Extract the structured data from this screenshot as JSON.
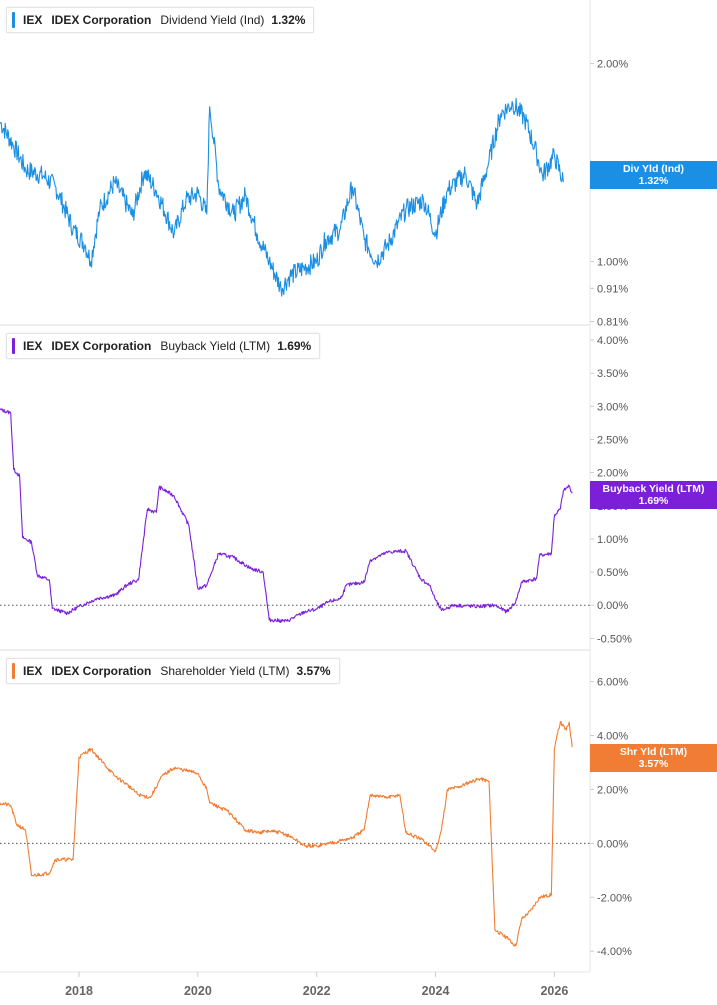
{
  "legends": [
    {
      "ticker": "IEX",
      "company": "IDEX Corporation",
      "metric": "Dividend Yield (Ind)",
      "value": "1.32%"
    },
    {
      "ticker": "IEX",
      "company": "IDEX Corporation",
      "metric": "Buyback Yield (LTM)",
      "value": "1.69%"
    },
    {
      "ticker": "IEX",
      "company": "IDEX Corporation",
      "metric": "Shareholder Yield (LTM)",
      "value": "3.57%"
    }
  ],
  "tags": [
    {
      "label": "Div Yld (Ind)",
      "value": "1.32%"
    },
    {
      "label": "Buyback Yield (LTM)",
      "value": "1.69%"
    },
    {
      "label": "Shr Yld (LTM)",
      "value": "3.57%"
    }
  ],
  "colors": {
    "dividend": "#1a8fe3",
    "buyback": "#7b1fd8",
    "shareholder": "#f07d33",
    "grid": "#dddddd",
    "axis_text": "#555555"
  },
  "chart_data": [
    {
      "type": "line",
      "log_scale": true,
      "series": [
        {
          "name": "Dividend Yield (Ind)",
          "values": [
            [
              2016.67,
              1.63
            ],
            [
              2016.9,
              1.5
            ],
            [
              2017.1,
              1.38
            ],
            [
              2017.4,
              1.35
            ],
            [
              2017.6,
              1.3
            ],
            [
              2017.9,
              1.12
            ],
            [
              2018.1,
              1.06
            ],
            [
              2018.2,
              1.0
            ],
            [
              2018.35,
              1.2
            ],
            [
              2018.6,
              1.32
            ],
            [
              2018.9,
              1.17
            ],
            [
              2019.1,
              1.37
            ],
            [
              2019.3,
              1.28
            ],
            [
              2019.6,
              1.1
            ],
            [
              2019.8,
              1.24
            ],
            [
              2020.0,
              1.27
            ],
            [
              2020.15,
              1.18
            ],
            [
              2020.2,
              1.72
            ],
            [
              2020.35,
              1.3
            ],
            [
              2020.6,
              1.18
            ],
            [
              2020.8,
              1.26
            ],
            [
              2021.0,
              1.1
            ],
            [
              2021.2,
              1.0
            ],
            [
              2021.4,
              0.91
            ],
            [
              2021.55,
              0.95
            ],
            [
              2021.8,
              0.98
            ],
            [
              2022.0,
              1.0
            ],
            [
              2022.15,
              1.08
            ],
            [
              2022.4,
              1.12
            ],
            [
              2022.6,
              1.3
            ],
            [
              2022.8,
              1.08
            ],
            [
              2023.0,
              1.0
            ],
            [
              2023.2,
              1.06
            ],
            [
              2023.5,
              1.2
            ],
            [
              2023.8,
              1.24
            ],
            [
              2024.0,
              1.1
            ],
            [
              2024.2,
              1.28
            ],
            [
              2024.5,
              1.36
            ],
            [
              2024.7,
              1.22
            ],
            [
              2024.9,
              1.42
            ],
            [
              2025.1,
              1.68
            ],
            [
              2025.3,
              1.74
            ],
            [
              2025.5,
              1.65
            ],
            [
              2025.7,
              1.46
            ],
            [
              2025.8,
              1.35
            ],
            [
              2026.0,
              1.45
            ],
            [
              2026.15,
              1.32
            ]
          ]
        }
      ],
      "ylim": [
        0.8,
        2.5
      ],
      "y_ticks": [
        "2.00%",
        "1.00%",
        "0.91%",
        "0.81%"
      ]
    },
    {
      "type": "line",
      "series": [
        {
          "name": "Buyback Yield (LTM)",
          "values": [
            [
              2016.67,
              2.95
            ],
            [
              2016.85,
              2.9
            ],
            [
              2016.9,
              2.05
            ],
            [
              2017.0,
              1.95
            ],
            [
              2017.05,
              1.02
            ],
            [
              2017.2,
              0.95
            ],
            [
              2017.3,
              0.45
            ],
            [
              2017.5,
              0.38
            ],
            [
              2017.55,
              -0.05
            ],
            [
              2017.8,
              -0.12
            ],
            [
              2018.0,
              -0.02
            ],
            [
              2018.1,
              0.02
            ],
            [
              2018.3,
              0.1
            ],
            [
              2018.6,
              0.15
            ],
            [
              2018.8,
              0.3
            ],
            [
              2018.9,
              0.35
            ],
            [
              2019.0,
              0.38
            ],
            [
              2019.15,
              1.45
            ],
            [
              2019.3,
              1.4
            ],
            [
              2019.35,
              1.78
            ],
            [
              2019.6,
              1.65
            ],
            [
              2019.85,
              1.2
            ],
            [
              2020.0,
              0.25
            ],
            [
              2020.15,
              0.3
            ],
            [
              2020.35,
              0.78
            ],
            [
              2020.6,
              0.72
            ],
            [
              2020.9,
              0.55
            ],
            [
              2021.1,
              0.5
            ],
            [
              2021.2,
              -0.22
            ],
            [
              2021.5,
              -0.24
            ],
            [
              2021.8,
              -0.1
            ],
            [
              2022.0,
              -0.06
            ],
            [
              2022.2,
              0.05
            ],
            [
              2022.4,
              0.1
            ],
            [
              2022.5,
              0.3
            ],
            [
              2022.8,
              0.35
            ],
            [
              2022.9,
              0.68
            ],
            [
              2023.2,
              0.8
            ],
            [
              2023.5,
              0.82
            ],
            [
              2023.75,
              0.4
            ],
            [
              2023.9,
              0.3
            ],
            [
              2024.0,
              0.08
            ],
            [
              2024.1,
              -0.08
            ],
            [
              2024.3,
              0.0
            ],
            [
              2024.7,
              -0.02
            ],
            [
              2025.0,
              0.0
            ],
            [
              2025.2,
              -0.1
            ],
            [
              2025.35,
              0.05
            ],
            [
              2025.45,
              0.35
            ],
            [
              2025.7,
              0.4
            ],
            [
              2025.75,
              0.75
            ],
            [
              2025.95,
              0.78
            ],
            [
              2026.0,
              1.35
            ],
            [
              2026.1,
              1.45
            ],
            [
              2026.15,
              1.72
            ],
            [
              2026.25,
              1.8
            ],
            [
              2026.3,
              1.69
            ]
          ]
        }
      ],
      "ylim": [
        -0.6,
        4.0
      ],
      "y_ticks": [
        "4.00%",
        "3.50%",
        "3.00%",
        "2.50%",
        "2.00%",
        "1.50%",
        "1.00%",
        "0.50%",
        "0.00%",
        "-0.50%"
      ]
    },
    {
      "type": "line",
      "series": [
        {
          "name": "Shareholder Yield (LTM)",
          "values": [
            [
              2016.67,
              1.5
            ],
            [
              2016.85,
              1.4
            ],
            [
              2016.95,
              0.7
            ],
            [
              2017.1,
              0.5
            ],
            [
              2017.2,
              -1.2
            ],
            [
              2017.5,
              -1.1
            ],
            [
              2017.6,
              -0.6
            ],
            [
              2017.9,
              -0.6
            ],
            [
              2018.0,
              3.2
            ],
            [
              2018.2,
              3.5
            ],
            [
              2018.4,
              3.0
            ],
            [
              2018.6,
              2.5
            ],
            [
              2018.8,
              2.2
            ],
            [
              2019.0,
              1.8
            ],
            [
              2019.2,
              1.7
            ],
            [
              2019.4,
              2.5
            ],
            [
              2019.6,
              2.8
            ],
            [
              2019.8,
              2.7
            ],
            [
              2020.0,
              2.6
            ],
            [
              2020.15,
              2.0
            ],
            [
              2020.2,
              1.5
            ],
            [
              2020.5,
              1.2
            ],
            [
              2020.8,
              0.5
            ],
            [
              2021.0,
              0.4
            ],
            [
              2021.2,
              0.45
            ],
            [
              2021.4,
              0.4
            ],
            [
              2021.6,
              0.2
            ],
            [
              2021.8,
              -0.1
            ],
            [
              2022.0,
              -0.1
            ],
            [
              2022.2,
              0.0
            ],
            [
              2022.4,
              0.1
            ],
            [
              2022.6,
              0.2
            ],
            [
              2022.8,
              0.5
            ],
            [
              2022.9,
              1.8
            ],
            [
              2023.2,
              1.7
            ],
            [
              2023.4,
              1.8
            ],
            [
              2023.5,
              0.4
            ],
            [
              2023.8,
              0.1
            ],
            [
              2024.0,
              -0.3
            ],
            [
              2024.1,
              0.5
            ],
            [
              2024.2,
              2.0
            ],
            [
              2024.4,
              2.1
            ],
            [
              2024.6,
              2.3
            ],
            [
              2024.75,
              2.4
            ],
            [
              2024.9,
              2.3
            ],
            [
              2025.0,
              -3.2
            ],
            [
              2025.2,
              -3.5
            ],
            [
              2025.35,
              -3.8
            ],
            [
              2025.45,
              -2.8
            ],
            [
              2025.6,
              -2.5
            ],
            [
              2025.75,
              -2.0
            ],
            [
              2025.95,
              -1.9
            ],
            [
              2026.0,
              3.5
            ],
            [
              2026.1,
              4.5
            ],
            [
              2026.2,
              4.2
            ],
            [
              2026.25,
              4.5
            ],
            [
              2026.3,
              3.57
            ]
          ]
        }
      ],
      "ylim": [
        -4.4,
        6.8
      ],
      "y_ticks": [
        "6.00%",
        "4.00%",
        "2.00%",
        "0.00%",
        "-2.00%",
        "-4.00%"
      ]
    }
  ],
  "x_axis": {
    "range": [
      2016.67,
      2026.6
    ],
    "ticks": [
      "2018",
      "2020",
      "2022",
      "2024",
      "2026"
    ]
  }
}
